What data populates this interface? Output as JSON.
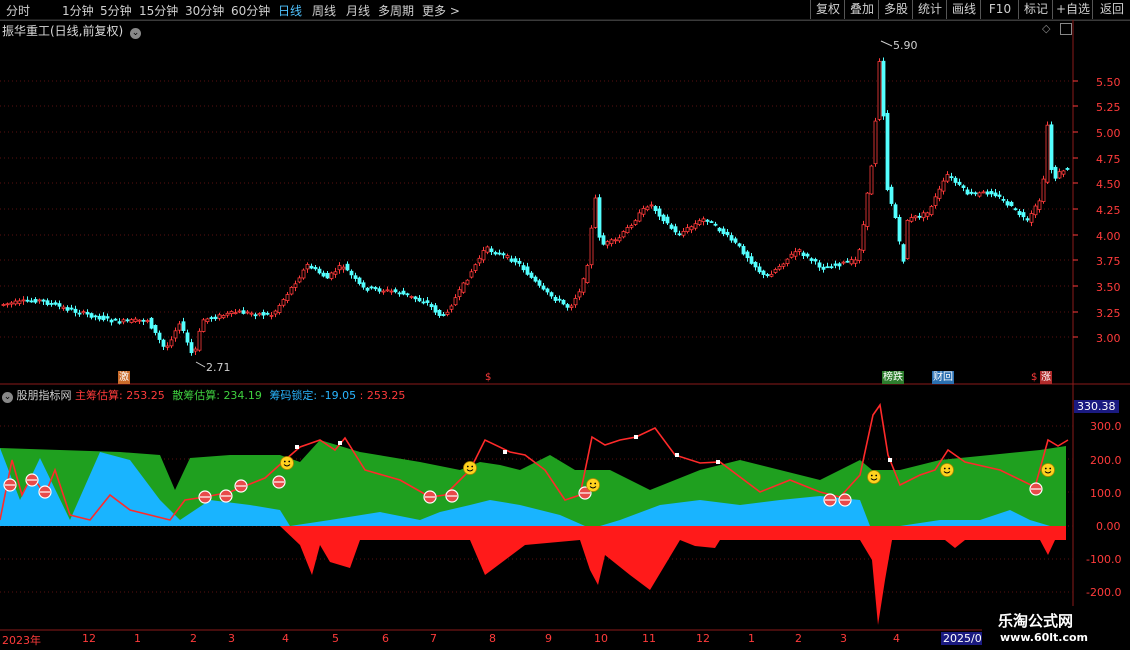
{
  "toolbar": {
    "periods": [
      "分时",
      "1分钟",
      "5分钟",
      "15分钟",
      "30分钟",
      "60分钟",
      "日线",
      "周线",
      "月线",
      "多周期",
      "更多 >"
    ],
    "active_period": "日线",
    "right_buttons": [
      "复权",
      "叠加",
      "多股",
      "统计",
      "画线",
      "F10",
      "标记",
      "+自选",
      "返回"
    ]
  },
  "main_chart": {
    "title": "振华重工(日线,前复权)",
    "y_ticks": [
      "5.50",
      "5.25",
      "5.00",
      "4.75",
      "4.50",
      "4.25",
      "4.00",
      "3.75",
      "3.50",
      "3.25",
      "3.00"
    ],
    "high_label": "5.90",
    "low_label": "2.71",
    "badges": [
      "激",
      "$",
      "榜跌",
      "财回",
      "$",
      "涨"
    ]
  },
  "indicator": {
    "name": "股朋指标网",
    "main_label": "主筹估算:",
    "main_value": "253.25",
    "scatter_label": "散筹估算:",
    "scatter_value": "234.19",
    "lock_label": "筹码锁定:",
    "lock_value": "-19.05",
    "extra_value": ": 253.25",
    "current_value": "330.38",
    "y_ticks": [
      "300.0",
      "200.0",
      "100.0",
      "0.00",
      "-100.0",
      "-200.0"
    ]
  },
  "date_axis": [
    "2023年",
    "12",
    "1",
    "2",
    "3",
    "4",
    "5",
    "6",
    "7",
    "8",
    "9",
    "10",
    "11",
    "12",
    "1",
    "2",
    "3",
    "4",
    "2025/0"
  ],
  "watermark": {
    "line1": "乐淘公式网",
    "line2": "www.60lt.com"
  },
  "colors": {
    "up": "#ff3b3b",
    "down": "#54ffff",
    "green": "#1fa01f",
    "cyan": "#19b4ff",
    "red": "#ff1a1a",
    "line": "#ff2a2a"
  }
}
